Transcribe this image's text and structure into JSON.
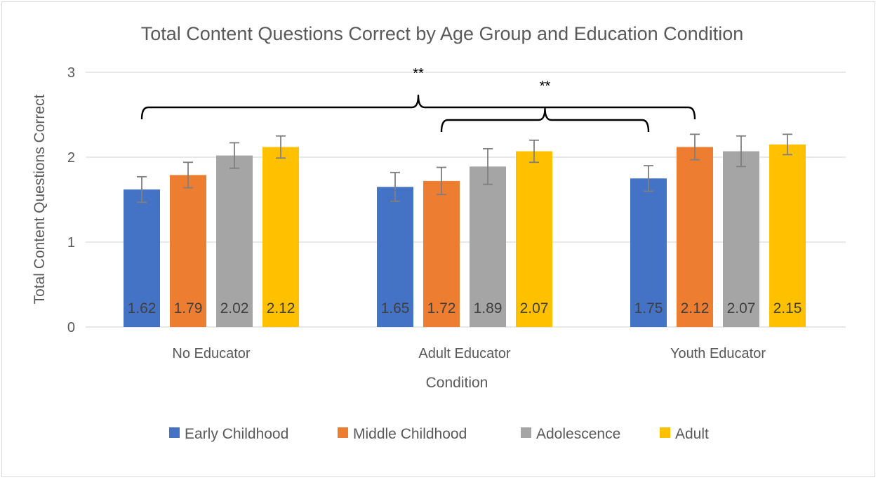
{
  "chart_data": {
    "type": "bar",
    "title": "Total Content Questions Correct by Age Group and Education Condition",
    "xlabel": "Condition",
    "ylabel": "Total Content Questions Correct",
    "ylim": [
      0,
      3
    ],
    "yticks": [
      "0",
      "1",
      "2",
      "3"
    ],
    "grid": true,
    "legend_position": "bottom",
    "categories": [
      "No Educator",
      "Adult Educator",
      "Youth Educator"
    ],
    "series": [
      {
        "name": "Early Childhood",
        "color": "#4472c4",
        "values": [
          1.62,
          1.65,
          1.75
        ],
        "labels": [
          "1.62",
          "1.65",
          "1.75"
        ],
        "errors": [
          0.15,
          0.17,
          0.15
        ]
      },
      {
        "name": "Middle Childhood",
        "color": "#ed7d31",
        "values": [
          1.79,
          1.72,
          2.12
        ],
        "labels": [
          "1.79",
          "1.72",
          "2.12"
        ],
        "errors": [
          0.15,
          0.16,
          0.15
        ]
      },
      {
        "name": "Adolescence",
        "color": "#a5a5a5",
        "values": [
          2.02,
          1.89,
          2.07
        ],
        "labels": [
          "2.02",
          "1.89",
          "2.07"
        ],
        "errors": [
          0.15,
          0.21,
          0.18
        ]
      },
      {
        "name": "Adult",
        "color": "#ffc000",
        "values": [
          2.12,
          2.07,
          2.15
        ],
        "labels": [
          "2.12",
          "2.07",
          "2.15"
        ],
        "errors": [
          0.13,
          0.13,
          0.12
        ]
      }
    ],
    "annotations": [
      {
        "text": "**",
        "from": "No Educator",
        "to": "Youth Educator"
      },
      {
        "text": "**",
        "from": "Adult Educator",
        "to": "Youth Educator"
      }
    ]
  }
}
